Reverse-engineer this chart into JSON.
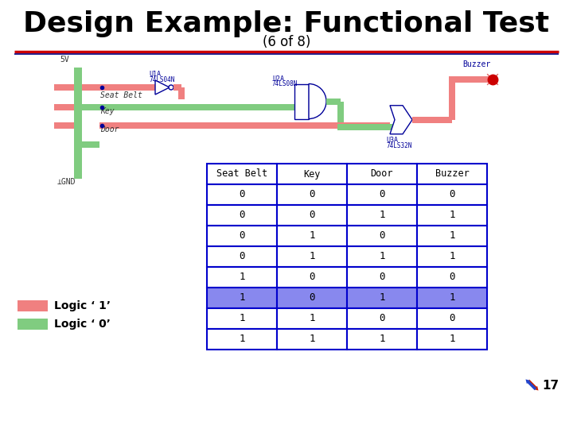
{
  "title": "Design Example: Functional Test",
  "subtitle": "(6 of 8)",
  "title_color": "#000000",
  "subtitle_color": "#000000",
  "separator_color_top": "#cc0000",
  "separator_color_bottom": "#000080",
  "table_headers": [
    "Seat Belt",
    "Key",
    "Door",
    "Buzzer"
  ],
  "table_data": [
    [
      0,
      0,
      0,
      0
    ],
    [
      0,
      0,
      1,
      1
    ],
    [
      0,
      1,
      0,
      1
    ],
    [
      0,
      1,
      1,
      1
    ],
    [
      1,
      0,
      0,
      0
    ],
    [
      1,
      0,
      1,
      1
    ],
    [
      1,
      1,
      0,
      0
    ],
    [
      1,
      1,
      1,
      1
    ]
  ],
  "highlighted_row": 5,
  "highlight_color": "#8888ee",
  "table_border_color": "#0000cc",
  "table_text_color": "#000000",
  "legend_logic1_color": "#f08080",
  "legend_logic0_color": "#80cc80",
  "legend_logic1_label": "Logic ‘ 1’",
  "legend_logic0_label": "Logic ‘ 0’",
  "page_number": "17",
  "background_color": "#ffffff",
  "wire_red": "#f08080",
  "wire_green": "#80cc80",
  "wire_blue": "#000099",
  "label_color": "#000099"
}
